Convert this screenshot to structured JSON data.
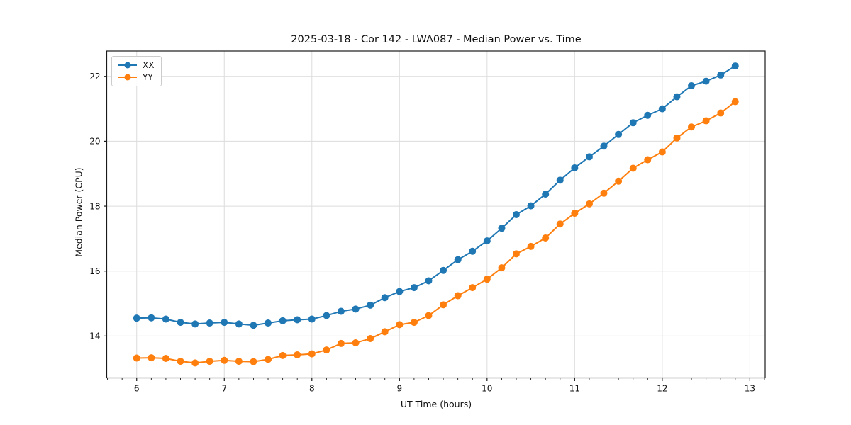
{
  "chart_data": {
    "type": "line",
    "title": "2025-03-18 - Cor 142 - LWA087 - Median Power vs. Time",
    "xlabel": "UT Time (hours)",
    "ylabel": "Median Power (CPU)",
    "xlim": [
      5.658,
      13.175
    ],
    "ylim": [
      12.71,
      22.78
    ],
    "x_major_ticks": [
      6,
      7,
      8,
      9,
      10,
      11,
      12,
      13
    ],
    "y_major_ticks": [
      14,
      16,
      18,
      20,
      22
    ],
    "x_minor_step_hours": 0.1667,
    "grid": "major-both",
    "grid_color": "#dcdcdc",
    "legend_position": "upper-left",
    "x": [
      6.0,
      6.167,
      6.333,
      6.5,
      6.667,
      6.833,
      7.0,
      7.167,
      7.333,
      7.5,
      7.667,
      7.833,
      8.0,
      8.167,
      8.333,
      8.5,
      8.667,
      8.833,
      9.0,
      9.167,
      9.333,
      9.5,
      9.667,
      9.833,
      10.0,
      10.167,
      10.333,
      10.5,
      10.667,
      10.833,
      11.0,
      11.167,
      11.333,
      11.5,
      11.667,
      11.833,
      12.0,
      12.167,
      12.333,
      12.5,
      12.667,
      12.833
    ],
    "series": [
      {
        "name": "XX",
        "color": "#1f77b4",
        "values": [
          14.55,
          14.56,
          14.52,
          14.42,
          14.37,
          14.4,
          14.42,
          14.37,
          14.33,
          14.4,
          14.47,
          14.5,
          14.52,
          14.63,
          14.76,
          14.83,
          14.95,
          15.18,
          15.37,
          15.49,
          15.7,
          16.02,
          16.35,
          16.61,
          16.93,
          17.32,
          17.74,
          18.01,
          18.37,
          18.8,
          19.18,
          19.52,
          19.85,
          20.21,
          20.57,
          20.8,
          21.0,
          21.37,
          21.71,
          21.85,
          22.04,
          22.32
        ]
      },
      {
        "name": "YY",
        "color": "#ff7f0e",
        "values": [
          13.32,
          13.33,
          13.31,
          13.22,
          13.17,
          13.22,
          13.25,
          13.22,
          13.21,
          13.28,
          13.4,
          13.42,
          13.45,
          13.57,
          13.77,
          13.79,
          13.92,
          14.13,
          14.35,
          14.42,
          14.63,
          14.96,
          15.24,
          15.49,
          15.75,
          16.1,
          16.53,
          16.76,
          17.02,
          17.45,
          17.78,
          18.07,
          18.4,
          18.77,
          19.17,
          19.43,
          19.67,
          20.1,
          20.44,
          20.63,
          20.87,
          21.22
        ]
      }
    ]
  }
}
